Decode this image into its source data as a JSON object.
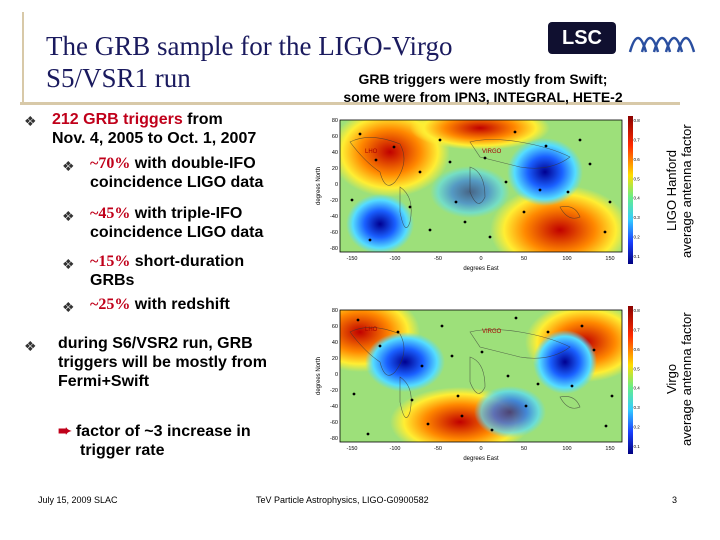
{
  "title_line1": "The GRB sample for the LIGO-Virgo",
  "title_line2": "S5/VSR1 run",
  "logo_text": "LSC",
  "caption_line1": "GRB triggers were mostly from Swift;",
  "caption_line2": "some were from IPN3, INTEGRAL, HETE-2",
  "bullet_symbol": "❖",
  "b1_red": "212 GRB triggers",
  "b1_rest1": " from",
  "b1_rest2": "Nov. 4, 2005 to Oct. 1, 2007",
  "sub1_pct": "~70%",
  "sub1_a": " with double-IFO",
  "sub1_b": "coincidence LIGO data",
  "sub2_pct": "~45%",
  "sub2_a": " with triple-IFO",
  "sub2_b": "coincidence LIGO data",
  "sub3_pct": "~15%",
  "sub3_a": " short-duration",
  "sub3_b": "GRBs",
  "sub4_pct": "~25%",
  "sub4_a": " with redshift",
  "b2_l1": "during S6/VSR2 run, GRB",
  "b2_l2": "triggers will be mostly from",
  "b2_l3": "Fermi+Swift",
  "arrow": "➨",
  "b3_l1": " factor of ~3 increase in",
  "b3_l2": "trigger rate",
  "map1_label_l1": "LIGO Hanford",
  "map1_label_l2": "average antenna factor",
  "map2_label_l1": "Virgo",
  "map2_label_l2": "average antenna factor",
  "map_ylabel": "degrees North",
  "map_xlabel": "degrees East",
  "map_yticks": [
    "80",
    "60",
    "40",
    "20",
    "0",
    "-20",
    "-40",
    "-60",
    "-80"
  ],
  "map_xticks": [
    "-150",
    "-100",
    "-50",
    "0",
    "50",
    "100",
    "150"
  ],
  "map_marker_a": "LHO",
  "map_marker_b": "VIRGO",
  "cbar_ticks": [
    "0.8",
    "0.7",
    "0.6",
    "0.5",
    "0.4",
    "0.3",
    "0.2",
    "0.1"
  ],
  "footer_left": "July 15, 2009  SLAC",
  "footer_center": "TeV Particle Astrophysics,  LIGO-G0900582",
  "footer_page": "3"
}
